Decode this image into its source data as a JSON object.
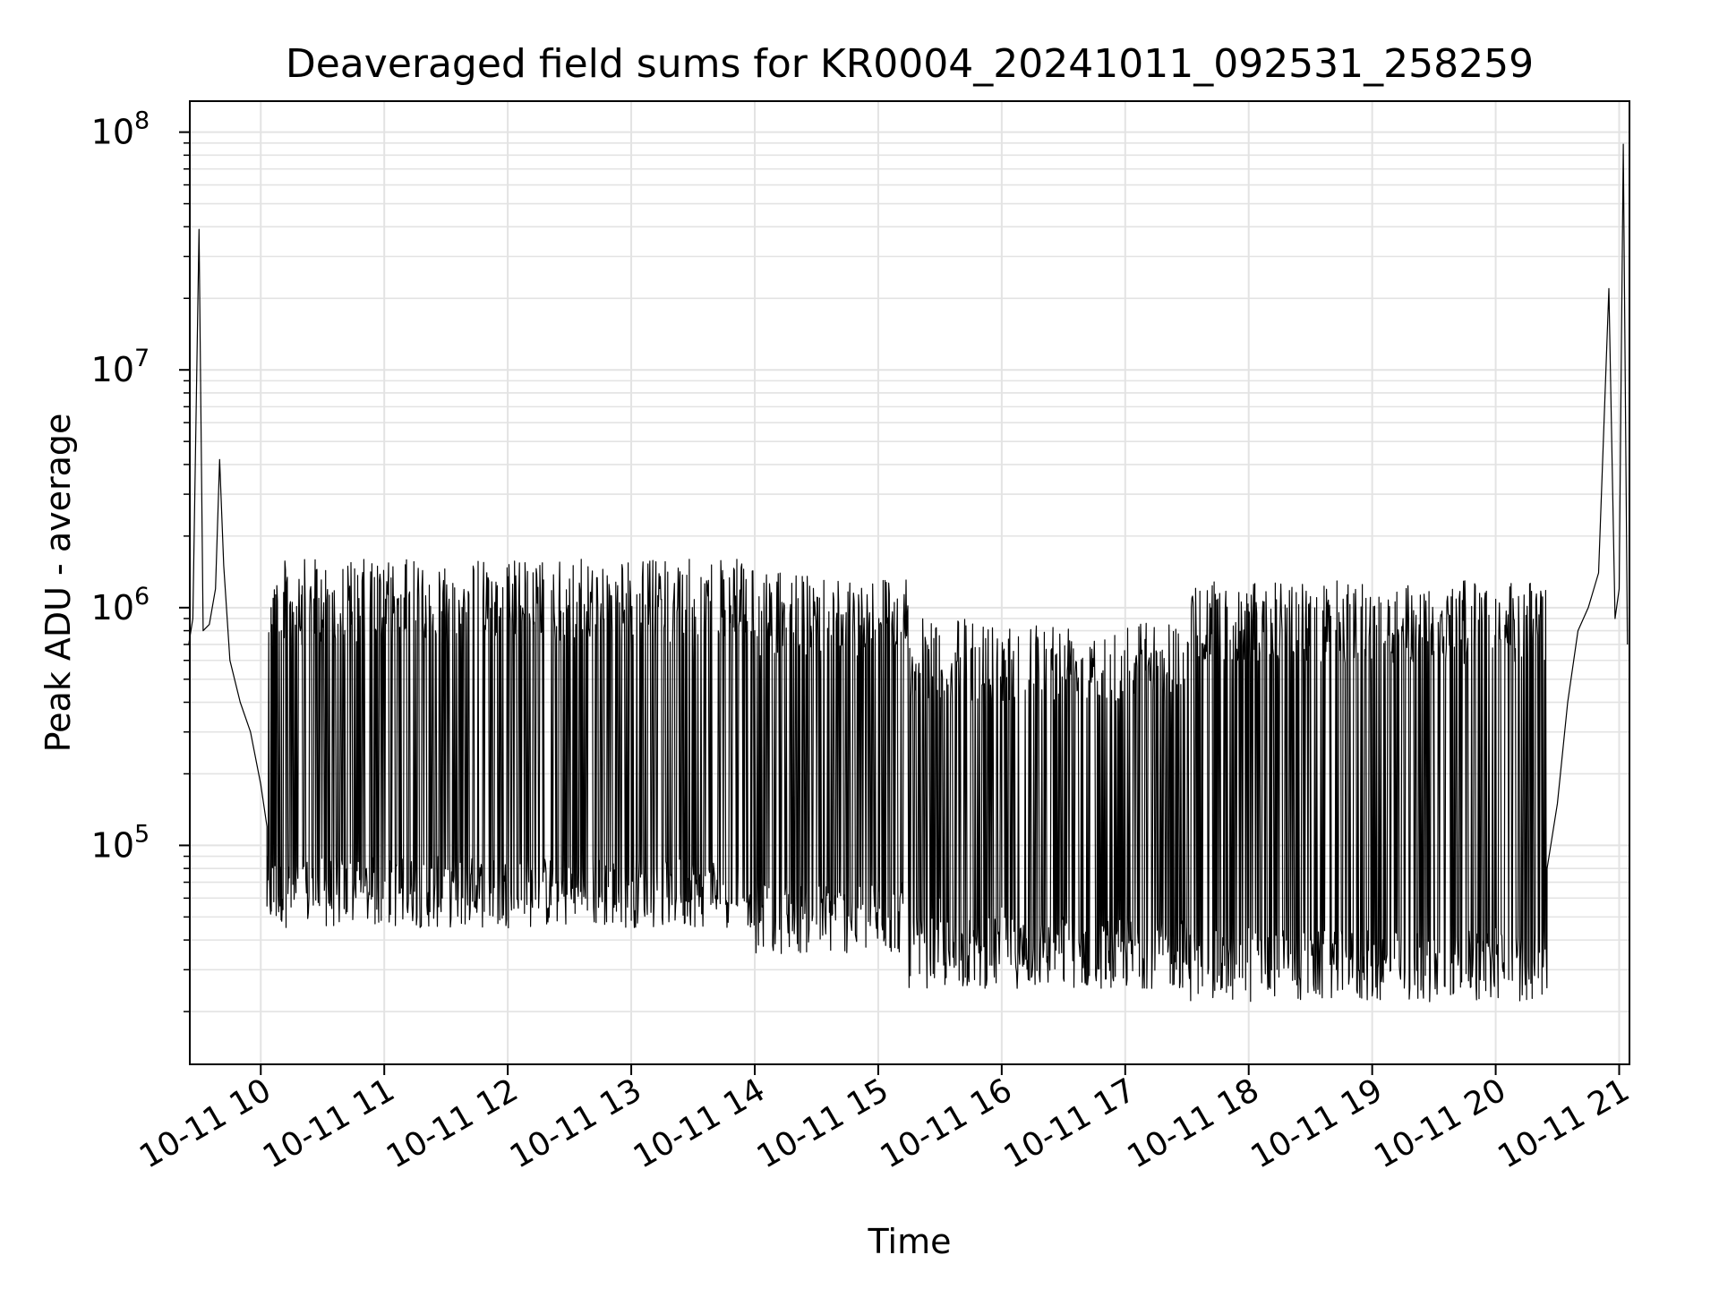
{
  "chart_data": {
    "type": "line",
    "title": "Deaveraged field sums for KR0004_20241011_092531_258259",
    "xlabel": "Time",
    "ylabel": "Peak ADU - average",
    "y_scale": "log",
    "ylim": [
      12000,
      135000000
    ],
    "xlim": [
      "2024-10-11 09:25:31",
      "2024-10-11 21:05:00"
    ],
    "x_ticks": [
      {
        "time": "2024-10-11 10:00",
        "label": "10-11 10"
      },
      {
        "time": "2024-10-11 11:00",
        "label": "10-11 11"
      },
      {
        "time": "2024-10-11 12:00",
        "label": "10-11 12"
      },
      {
        "time": "2024-10-11 13:00",
        "label": "10-11 13"
      },
      {
        "time": "2024-10-11 14:00",
        "label": "10-11 14"
      },
      {
        "time": "2024-10-11 15:00",
        "label": "10-11 15"
      },
      {
        "time": "2024-10-11 16:00",
        "label": "10-11 16"
      },
      {
        "time": "2024-10-11 17:00",
        "label": "10-11 17"
      },
      {
        "time": "2024-10-11 18:00",
        "label": "10-11 18"
      },
      {
        "time": "2024-10-11 19:00",
        "label": "10-11 19"
      },
      {
        "time": "2024-10-11 20:00",
        "label": "10-11 20"
      },
      {
        "time": "2024-10-11 21:00",
        "label": "10-11 21"
      }
    ],
    "y_ticks": [
      {
        "value": 100000,
        "mantissa": "10",
        "exponent": "5"
      },
      {
        "value": 1000000,
        "mantissa": "10",
        "exponent": "6"
      },
      {
        "value": 10000000,
        "mantissa": "10",
        "exponent": "7"
      },
      {
        "value": 100000000,
        "mantissa": "10",
        "exponent": "8"
      }
    ],
    "grid": true,
    "series": [
      {
        "color": "#000000",
        "x": [
          "2024-10-11 09:25",
          "2024-10-11 09:27",
          "2024-10-11 09:30",
          "2024-10-11 09:32",
          "2024-10-11 09:35",
          "2024-10-11 09:38",
          "2024-10-11 09:40",
          "2024-10-11 09:42",
          "2024-10-11 09:45",
          "2024-10-11 09:50",
          "2024-10-11 09:55",
          "2024-10-11 10:00",
          "2024-10-11 10:03",
          "2024-10-11 10:05",
          "2024-10-11 10:10",
          "2024-10-11 10:20",
          "2024-10-11 10:30",
          "2024-10-11 10:40",
          "2024-10-11 10:50",
          "2024-10-11 11:00",
          "2024-10-11 11:20",
          "2024-10-11 11:40",
          "2024-10-11 12:00",
          "2024-10-11 12:30",
          "2024-10-11 13:00",
          "2024-10-11 13:30",
          "2024-10-11 14:00",
          "2024-10-11 14:30",
          "2024-10-11 14:50",
          "2024-10-11 15:00",
          "2024-10-11 15:30",
          "2024-10-11 16:00",
          "2024-10-11 16:30",
          "2024-10-11 17:00",
          "2024-10-11 17:30",
          "2024-10-11 18:00",
          "2024-10-11 18:30",
          "2024-10-11 19:00",
          "2024-10-11 19:30",
          "2024-10-11 20:00",
          "2024-10-11 20:15",
          "2024-10-11 20:25",
          "2024-10-11 20:30",
          "2024-10-11 20:35",
          "2024-10-11 20:40",
          "2024-10-11 20:45",
          "2024-10-11 20:50",
          "2024-10-11 20:55",
          "2024-10-11 20:58",
          "2024-10-11 21:00",
          "2024-10-11 21:02",
          "2024-10-11 21:04"
        ],
        "y": [
          700000,
          900000,
          39000000,
          800000,
          850000,
          1200000,
          4200000,
          1500000,
          600000,
          400000,
          300000,
          180000,
          120000,
          1000000,
          800000,
          700000,
          600000,
          650000,
          700000,
          650000,
          750000,
          700000,
          700000,
          750000,
          650000,
          600000,
          300000,
          250000,
          250000,
          70000,
          60000,
          55000,
          50000,
          55000,
          45000,
          45000,
          40000,
          40000,
          40000,
          45000,
          60000,
          80000,
          150000,
          400000,
          800000,
          1000000,
          1400000,
          22000000,
          900000,
          1200000,
          89000000,
          700000
        ],
        "spike_bands": [
          {
            "from": "2024-10-11 10:03",
            "to": "2024-10-11 14:00",
            "low": 45000,
            "high": 1600000
          },
          {
            "from": "2024-10-11 14:00",
            "to": "2024-10-11 15:15",
            "low": 35000,
            "high": 1400000
          },
          {
            "from": "2024-10-11 15:15",
            "to": "2024-10-11 17:30",
            "low": 25000,
            "high": 900000
          },
          {
            "from": "2024-10-11 17:30",
            "to": "2024-10-11 20:25",
            "low": 22000,
            "high": 1300000
          }
        ]
      }
    ]
  }
}
